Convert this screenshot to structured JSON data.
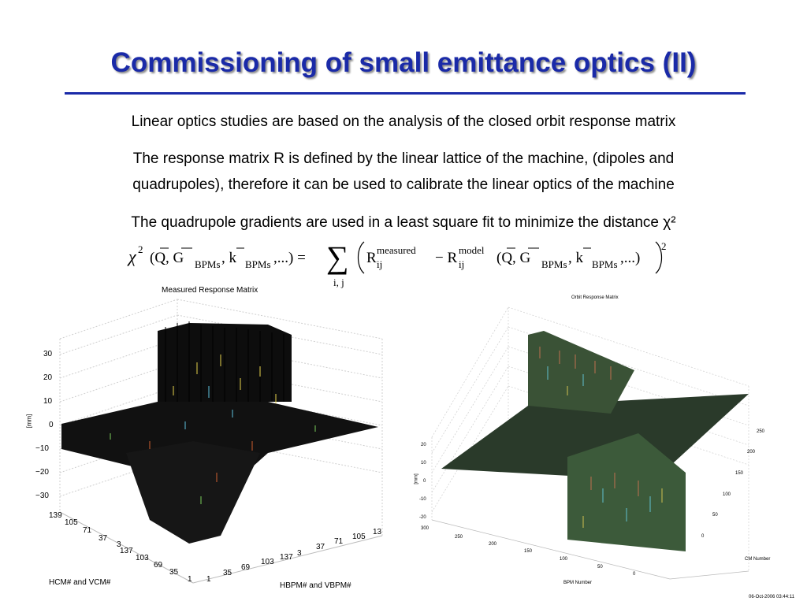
{
  "slide": {
    "title": "Commissioning of small emittance optics (II)",
    "line1": "Linear optics studies are based on the analysis of the closed orbit response matrix",
    "line2a": "The response matrix R is defined by the linear lattice of the machine, (dipoles and",
    "line2b": "quadrupoles), therefore it can be used to calibrate the linear optics of the machine",
    "line3": "The quadrupole gradients are used in a least square fit to minimize the distance χ²"
  },
  "equation": {
    "chi": "χ",
    "sup2": "2",
    "args_left": "(Q, G",
    "bpms": "BPMs",
    "k": ", k",
    "dots": ",...) =",
    "sum_sub": "i, j",
    "R1": "R",
    "R1_sup": "measured",
    "R1_sub": "ij",
    "minus": "− R",
    "R2_sup": "model",
    "R2_sub": "ij",
    "args_right": "(Q, G",
    "dots2": ",...)",
    "outer_sup": "2"
  },
  "left_plot": {
    "title": "Measured Response Matrix",
    "ylabel": "[mm]",
    "yticks": [
      "30",
      "20",
      "10",
      "0",
      "−10",
      "−20",
      "−30"
    ],
    "hcm_ticks": [
      "139",
      "105",
      "71",
      "37",
      "3",
      "137",
      "103",
      "69",
      "35",
      "1"
    ],
    "hbpm_ticks": [
      "1",
      "35",
      "69",
      "103",
      "137",
      "3",
      "37",
      "71",
      "105",
      "13"
    ],
    "xlabel_left": "HCM# and VCM#",
    "xlabel_right": "HBPM# and VBPM#"
  },
  "right_plot": {
    "title": "Orbit Response Matrix",
    "ylabel": "[mm]",
    "zticks": [
      "20",
      "10",
      "0",
      "-10",
      "-20"
    ],
    "bpm_ticks": [
      "300",
      "250",
      "200",
      "150",
      "100",
      "50",
      "0"
    ],
    "cm_ticks": [
      "250",
      "200",
      "150",
      "100",
      "50",
      "0"
    ],
    "xlabel": "BPM Number",
    "ylabel2": "CM Number",
    "timestamp": "06-Oct-2006 03:44:11"
  }
}
